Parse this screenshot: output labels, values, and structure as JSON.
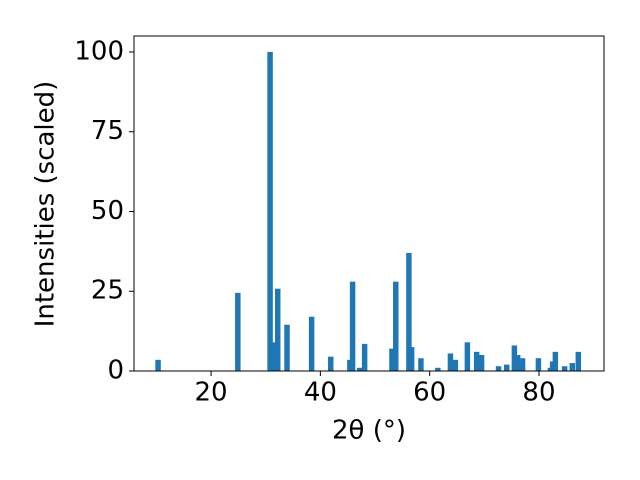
{
  "chart_data": {
    "type": "bar",
    "xlabel": "2θ (°)",
    "ylabel": "Intensities (scaled)",
    "color": "#1f77b4",
    "bar_width": 1,
    "x": [
      10.3,
      24.9,
      30.8,
      31.4,
      32.2,
      33.9,
      38.4,
      41.9,
      45.4,
      45.9,
      47.2,
      48.1,
      53.1,
      53.8,
      56.2,
      56.7,
      58.4,
      61.5,
      63.8,
      64.7,
      66.9,
      68.6,
      69.5,
      72.6,
      74.1,
      75.5,
      76.1,
      77.0,
      79.9,
      82.1,
      82.5,
      83.0,
      84.7,
      86.1,
      87.2
    ],
    "values": [
      3.5,
      24.5,
      100,
      9,
      25.8,
      14.5,
      17,
      4.5,
      3.5,
      28,
      1,
      8.5,
      7,
      28,
      37,
      7.5,
      4,
      1,
      5.5,
      3.5,
      9,
      6,
      5,
      1.5,
      2,
      8,
      5,
      4,
      4,
      1,
      3,
      6,
      1.5,
      2.5,
      6
    ],
    "xlim": [
      5.9,
      91.9
    ],
    "ylim": [
      0,
      105
    ],
    "xticks": [
      20,
      40,
      60,
      80
    ],
    "yticks": [
      0,
      25,
      50,
      75,
      100
    ]
  }
}
